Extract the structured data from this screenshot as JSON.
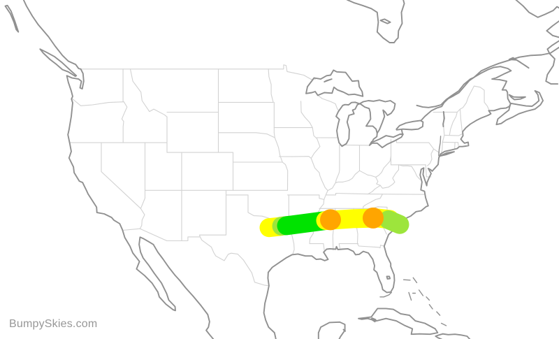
{
  "watermark": {
    "text": "BumpySkies.com",
    "color": "#979797"
  },
  "map": {
    "background_color": "#ffffff",
    "coastline_color": "#909090",
    "state_border_color": "#d2d2d2"
  },
  "turbulence_forecast": {
    "palette": {
      "green": "#00E300",
      "light_green": "#9DE53C",
      "yellow": "#FFFF00",
      "orange": "#FFA500"
    },
    "route_stroke_width": 27,
    "marker_radius": 15,
    "route_segments": [
      {
        "color_key": "yellow",
        "points": [
          [
            -97.14,
            32.84
          ],
          [
            -95.62,
            32.98
          ]
        ]
      },
      {
        "color_key": "light_green",
        "points": [
          [
            -95.43,
            33.03
          ],
          [
            -94.29,
            33.12
          ]
        ]
      },
      {
        "color_key": "green",
        "points": [
          [
            -94.76,
            33.07
          ],
          [
            -89.24,
            33.67
          ]
        ]
      },
      {
        "color_key": "yellow",
        "points": [
          [
            -89.43,
            33.65
          ],
          [
            -85.71,
            33.86
          ],
          [
            -82.38,
            33.94
          ],
          [
            -80.67,
            33.78
          ]
        ]
      },
      {
        "color_key": "light_green",
        "points": [
          [
            -80.86,
            33.74
          ],
          [
            -79.33,
            33.2
          ]
        ]
      }
    ],
    "waypoint_markers": [
      {
        "color_key": "orange",
        "lon": -88.76,
        "lat": 33.74
      },
      {
        "color_key": "orange",
        "lon": -82.95,
        "lat": 33.94
      }
    ]
  }
}
